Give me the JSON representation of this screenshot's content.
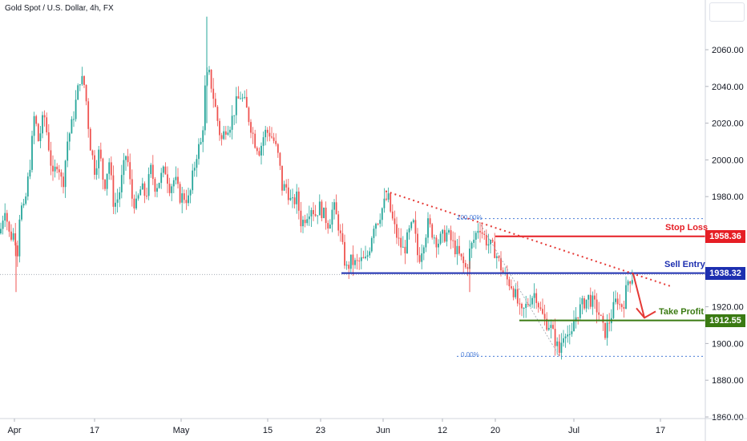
{
  "header": {
    "symbol_title": "Gold Spot / U.S. Dollar, 4h, FX"
  },
  "colors": {
    "up": "#26a69a",
    "down": "#ef5350",
    "stop_loss": "#e61e25",
    "sell_entry": "#1d2fb0",
    "take_profit": "#3a7a12",
    "fib": "#4a7dd8",
    "trendline": "#e53935",
    "grid_last": "#9aa0ab"
  },
  "annotations": {
    "stop_loss": {
      "label": "Stop Loss",
      "price": "1958.36"
    },
    "sell_entry": {
      "label": "Sell Entry",
      "price": "1938.32"
    },
    "take_profit": {
      "label": "Take Profit",
      "price": "1912.55"
    },
    "fib_100": "100.00%",
    "fib_0": "0.00%"
  },
  "chart_data": {
    "type": "candlestick",
    "title": "Gold Spot / U.S. Dollar, 4h, FX",
    "ylim": [
      1855,
      2080
    ],
    "y_ticks": [
      "2060.00",
      "2040.00",
      "2020.00",
      "2000.00",
      "1980.00",
      "1960.00",
      "1940.00",
      "1920.00",
      "1900.00",
      "1880.00",
      "1860.00"
    ],
    "y_tick_values": [
      2060,
      2040,
      2020,
      2000,
      1980,
      1960,
      1940,
      1920,
      1900,
      1880,
      1860
    ],
    "x_ticks": [
      "Apr",
      "17",
      "May",
      "15",
      "23",
      "Jun",
      "12",
      "20",
      "Jul",
      "17"
    ],
    "path": [
      [
        0,
        1960
      ],
      [
        6,
        1975
      ],
      [
        12,
        1958
      ],
      [
        18,
        1960
      ],
      [
        22,
        1950
      ],
      [
        25,
        1975
      ],
      [
        30,
        1972
      ],
      [
        38,
        2000
      ],
      [
        43,
        2025
      ],
      [
        48,
        2010
      ],
      [
        55,
        2025
      ],
      [
        60,
        2010
      ],
      [
        66,
        1990
      ],
      [
        72,
        2000
      ],
      [
        78,
        1985
      ],
      [
        84,
        2010
      ],
      [
        90,
        2020
      ],
      [
        96,
        2035
      ],
      [
        100,
        2045
      ],
      [
        106,
        2040
      ],
      [
        112,
        2010
      ],
      [
        118,
        1995
      ],
      [
        124,
        2005
      ],
      [
        130,
        1985
      ],
      [
        136,
        2000
      ],
      [
        142,
        1975
      ],
      [
        148,
        1980
      ],
      [
        152,
        1990
      ],
      [
        158,
        2005
      ],
      [
        164,
        1980
      ],
      [
        170,
        1975
      ],
      [
        176,
        1985
      ],
      [
        182,
        1980
      ],
      [
        188,
        1995
      ],
      [
        194,
        1985
      ],
      [
        200,
        1990
      ],
      [
        206,
        1995
      ],
      [
        212,
        1985
      ],
      [
        218,
        1990
      ],
      [
        224,
        1980
      ],
      [
        230,
        1980
      ],
      [
        236,
        1978
      ],
      [
        240,
        1990
      ],
      [
        246,
        2005
      ],
      [
        252,
        2010
      ],
      [
        256,
        2040
      ],
      [
        260,
        2048
      ],
      [
        264,
        2040
      ],
      [
        268,
        2030
      ],
      [
        272,
        2020
      ],
      [
        276,
        2010
      ],
      [
        282,
        2018
      ],
      [
        288,
        2020
      ],
      [
        294,
        2030
      ],
      [
        300,
        2035
      ],
      [
        306,
        2030
      ],
      [
        312,
        2020
      ],
      [
        318,
        2010
      ],
      [
        324,
        2005
      ],
      [
        330,
        2015
      ],
      [
        336,
        2015
      ],
      [
        342,
        2010
      ],
      [
        348,
        2000
      ],
      [
        352,
        1985
      ],
      [
        358,
        1985
      ],
      [
        364,
        1975
      ],
      [
        370,
        1980
      ],
      [
        376,
        1965
      ],
      [
        382,
        1970
      ],
      [
        388,
        1975
      ],
      [
        394,
        1970
      ],
      [
        398,
        1975
      ],
      [
        404,
        1970
      ],
      [
        410,
        1965
      ],
      [
        416,
        1975
      ],
      [
        422,
        1965
      ],
      [
        428,
        1950
      ],
      [
        432,
        1940
      ],
      [
        438,
        1945
      ],
      [
        444,
        1943
      ],
      [
        450,
        1945
      ],
      [
        456,
        1945
      ],
      [
        460,
        1950
      ],
      [
        466,
        1965
      ],
      [
        472,
        1968
      ],
      [
        478,
        1975
      ],
      [
        484,
        1980
      ],
      [
        488,
        1970
      ],
      [
        494,
        1960
      ],
      [
        498,
        1955
      ],
      [
        504,
        1950
      ],
      [
        510,
        1960
      ],
      [
        516,
        1965
      ],
      [
        522,
        1945
      ],
      [
        528,
        1955
      ],
      [
        534,
        1965
      ],
      [
        540,
        1960
      ],
      [
        546,
        1955
      ],
      [
        552,
        1958
      ],
      [
        558,
        1960
      ],
      [
        564,
        1955
      ],
      [
        570,
        1950
      ],
      [
        576,
        1945
      ],
      [
        582,
        1940
      ],
      [
        586,
        1950
      ],
      [
        590,
        1955
      ],
      [
        594,
        1960
      ],
      [
        598,
        1965
      ],
      [
        602,
        1960
      ],
      [
        608,
        1955
      ],
      [
        614,
        1952
      ],
      [
        618,
        1950
      ],
      [
        622,
        1945
      ],
      [
        628,
        1938
      ],
      [
        632,
        1935
      ],
      [
        638,
        1932
      ],
      [
        644,
        1925
      ],
      [
        650,
        1915
      ],
      [
        656,
        1920
      ],
      [
        662,
        1925
      ],
      [
        668,
        1928
      ],
      [
        674,
        1918
      ],
      [
        680,
        1912
      ],
      [
        686,
        1910
      ],
      [
        690,
        1905
      ],
      [
        694,
        1900
      ],
      [
        698,
        1895
      ],
      [
        702,
        1905
      ],
      [
        706,
        1908
      ],
      [
        712,
        1900
      ],
      [
        716,
        1912
      ],
      [
        722,
        1918
      ],
      [
        728,
        1922
      ],
      [
        734,
        1925
      ],
      [
        740,
        1922
      ],
      [
        746,
        1918
      ],
      [
        750,
        1912
      ],
      [
        754,
        1905
      ],
      [
        760,
        1912
      ],
      [
        766,
        1920
      ],
      [
        770,
        1925
      ],
      [
        774,
        1920
      ],
      [
        778,
        1922
      ],
      [
        784,
        1935
      ],
      [
        790,
        1937
      ]
    ],
    "lines": {
      "stop_loss": 1958.36,
      "sell_entry": 1938.32,
      "take_profit": 1912.55,
      "fib_100": 1968,
      "fib_0": 1893
    },
    "trendline": [
      [
        481,
        1983
      ],
      [
        838,
        1931
      ]
    ],
    "projection": [
      [
        790,
        1938
      ],
      [
        804,
        1914
      ],
      [
        826,
        1920
      ]
    ]
  }
}
